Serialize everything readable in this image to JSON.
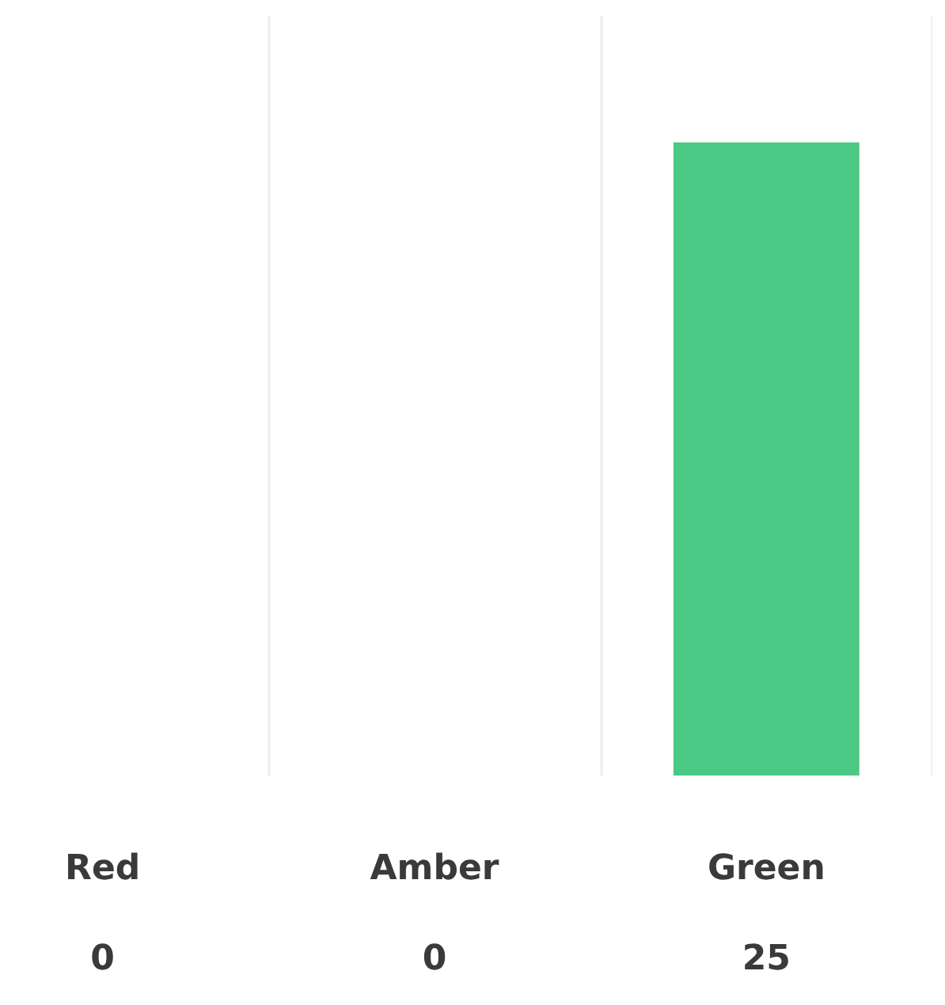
{
  "chart_data": {
    "type": "bar",
    "categories": [
      "Red",
      "Amber",
      "Green"
    ],
    "values": [
      0,
      0,
      25
    ],
    "color": "#4bc884",
    "ylim": [
      0,
      30
    ],
    "data_labels": true,
    "grid": "x"
  }
}
